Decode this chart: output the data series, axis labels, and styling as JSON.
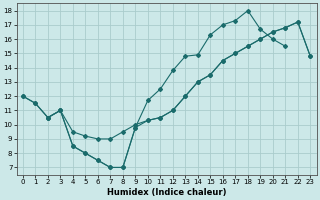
{
  "xlabel": "Humidex (Indice chaleur)",
  "bg_color": "#cce8e8",
  "grid_color": "#aacccc",
  "line_color": "#1a6b6b",
  "xlim": [
    -0.5,
    23.5
  ],
  "ylim": [
    6.5,
    18.5
  ],
  "xticks": [
    0,
    1,
    2,
    3,
    4,
    5,
    6,
    7,
    8,
    9,
    10,
    11,
    12,
    13,
    14,
    15,
    16,
    17,
    18,
    19,
    20,
    21,
    22,
    23
  ],
  "yticks": [
    7,
    8,
    9,
    10,
    11,
    12,
    13,
    14,
    15,
    16,
    17,
    18
  ],
  "curve1_x": [
    0,
    1,
    2,
    3,
    4,
    5,
    6,
    7,
    8,
    9,
    10,
    11,
    12,
    13,
    14,
    15,
    16,
    17,
    18,
    19,
    20,
    21
  ],
  "curve1_y": [
    12.0,
    11.5,
    10.5,
    11.0,
    8.5,
    8.0,
    7.5,
    7.0,
    7.0,
    9.8,
    11.7,
    12.5,
    13.8,
    14.8,
    14.9,
    16.3,
    17.0,
    17.3,
    18.0,
    16.7,
    16.0,
    15.5
  ],
  "curve2_x": [
    0,
    1,
    2,
    3,
    4,
    5,
    6,
    7,
    8,
    9,
    10,
    11,
    12,
    13,
    14,
    15,
    16,
    17,
    18,
    19,
    20,
    21,
    22,
    23
  ],
  "curve2_y": [
    12.0,
    11.5,
    10.5,
    11.0,
    9.5,
    9.2,
    9.0,
    9.0,
    9.5,
    10.0,
    10.3,
    10.5,
    11.0,
    12.0,
    13.0,
    13.5,
    14.5,
    15.0,
    15.5,
    16.0,
    16.5,
    16.8,
    17.2,
    14.8
  ],
  "curve3_x": [
    2,
    3,
    4,
    5,
    6,
    7,
    8,
    9,
    10,
    11,
    12,
    13,
    14,
    15,
    16,
    17,
    18,
    19,
    20,
    21,
    22,
    23
  ],
  "curve3_y": [
    10.5,
    11.0,
    8.5,
    8.0,
    7.5,
    7.0,
    7.0,
    9.8,
    10.3,
    10.5,
    11.0,
    12.0,
    13.0,
    13.5,
    14.5,
    15.0,
    15.5,
    16.0,
    16.5,
    16.8,
    17.2,
    14.8
  ]
}
